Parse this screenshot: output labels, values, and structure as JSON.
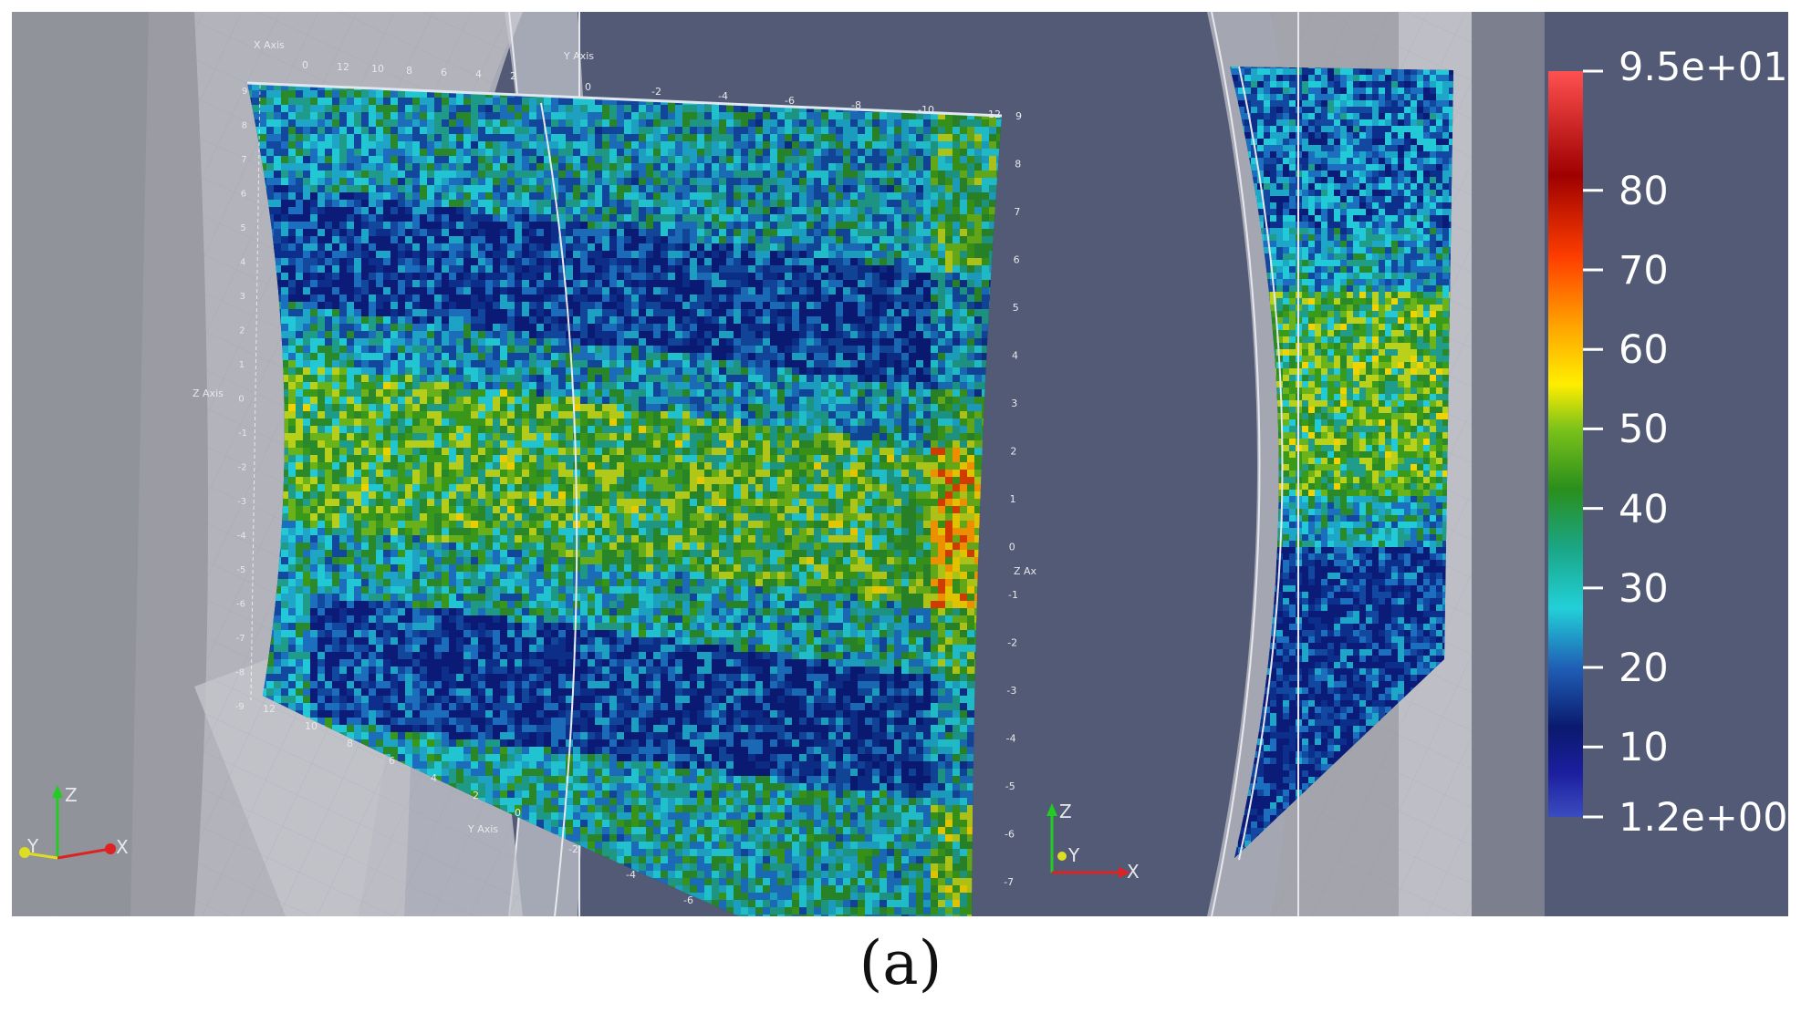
{
  "colorbar": {
    "max_label": "9.5e+01",
    "min_label": "1.2e+00",
    "ticks": [
      "80",
      "70",
      "60",
      "50",
      "40",
      "30",
      "20",
      "10"
    ],
    "colors": [
      "#3b4cc0",
      "#0a1a8c",
      "#0a2a7a",
      "#1a5db0",
      "#22c9d6",
      "#19a870",
      "#2e8b1e",
      "#56b41c",
      "#ffe600",
      "#ffa200",
      "#ff4d00",
      "#a80000",
      "#ff4d4d"
    ]
  },
  "left_block": {
    "x_axis_title": "X Axis",
    "y_axis_title": "Y Axis",
    "z_axis_title": "Z Axis",
    "x_ticks": [
      "0",
      "12",
      "10",
      "8",
      "6",
      "4",
      "2"
    ],
    "y_ticks_top": [
      "0",
      "-2",
      "-4",
      "-6",
      "-8",
      "-10",
      "-12"
    ],
    "z_ticks_left": [
      "9",
      "8",
      "7",
      "6",
      "5",
      "4",
      "3",
      "2",
      "1",
      "0",
      "-1",
      "-2",
      "-3",
      "-4",
      "-5",
      "-6",
      "-7",
      "-8",
      "-9"
    ],
    "z_ticks_right": [
      "9",
      "8",
      "7",
      "6",
      "5",
      "4",
      "3",
      "2",
      "1",
      "0",
      "-1",
      "-2",
      "-3",
      "-4",
      "-5",
      "-6",
      "-7"
    ],
    "right_z_title": "Z Ax",
    "bottom_x_ticks": [
      "12",
      "10",
      "8",
      "6",
      "4",
      "2",
      "0"
    ],
    "bottom_y_ticks": [
      "-2",
      "-4",
      "-6"
    ],
    "bottom_axis_title": "Y Axis"
  },
  "orientation_left": {
    "z": "Z",
    "y": "Y",
    "x": "X"
  },
  "orientation_right": {
    "z": "Z",
    "y": "Y",
    "x": "X"
  },
  "caption": "(a)"
}
